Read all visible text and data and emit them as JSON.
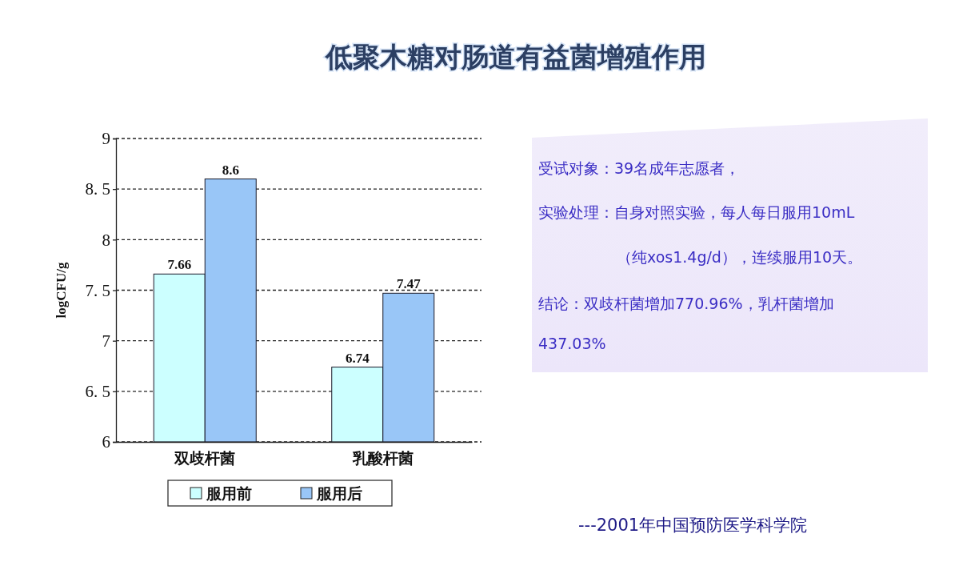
{
  "chart_data": {
    "type": "bar",
    "title": "低聚木糖对肠道有益菌增殖作用",
    "categories": [
      "双歧杆菌",
      "乳酸杆菌"
    ],
    "series": [
      {
        "name": "服用前",
        "color": "#ccffff",
        "values": [
          7.66,
          6.74
        ]
      },
      {
        "name": "服用后",
        "color": "#99c6f7",
        "values": [
          8.6,
          7.47
        ]
      }
    ],
    "ylabel": "logCFU/g",
    "ylim": [
      6,
      9
    ],
    "yticks": [
      6,
      {
        "value": 6.5,
        "label": "6. 5"
      },
      7,
      {
        "value": 7.5,
        "label": "7. 5"
      },
      8,
      {
        "value": 8.5,
        "label": "8. 5"
      },
      9
    ],
    "grid": "y",
    "legend": "bottom",
    "data_labels": true,
    "annotations": [
      "受试对象：39名成年志愿者，",
      "实验处理：自身对照实验，每人每日服用10mL",
      "（纯xos1.4g/d），连续服用10天。",
      "结论：双歧杆菌增加770.96%，乳杆菌增加",
      "437.03%",
      "---2001年中国预防医学科学院"
    ]
  }
}
